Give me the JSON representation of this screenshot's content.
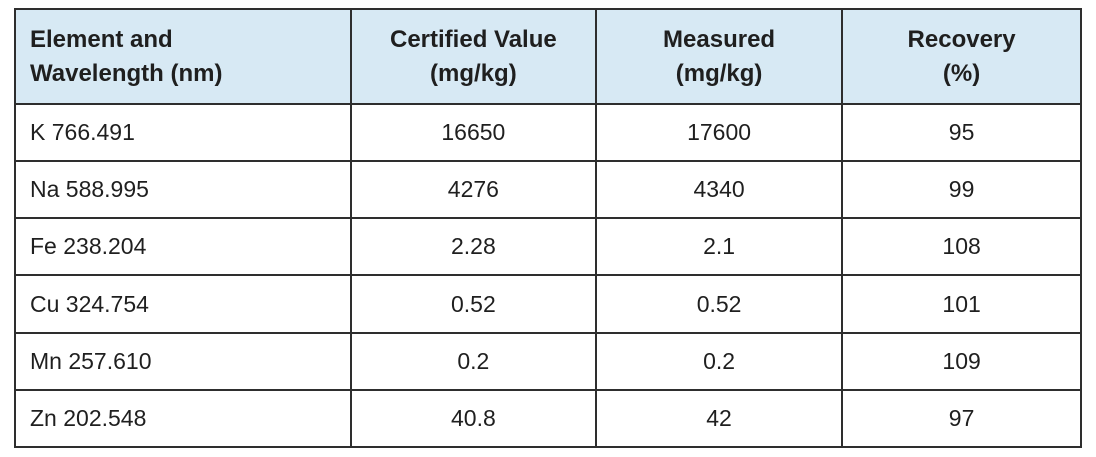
{
  "table": {
    "headers": [
      "Element and\nWavelength (nm)",
      "Certified Value\n(mg/kg)",
      "Measured\n(mg/kg)",
      "Recovery\n(%)"
    ],
    "rows": [
      {
        "element_wavelength": "K 766.491",
        "certified_value": "16650",
        "measured": "17600",
        "recovery": "95"
      },
      {
        "element_wavelength": "Na 588.995",
        "certified_value": "4276",
        "measured": "4340",
        "recovery": "99"
      },
      {
        "element_wavelength": "Fe 238.204",
        "certified_value": "2.28",
        "measured": "2.1",
        "recovery": "108"
      },
      {
        "element_wavelength": "Cu 324.754",
        "certified_value": "0.52",
        "measured": "0.52",
        "recovery": "101"
      },
      {
        "element_wavelength": "Mn 257.610",
        "certified_value": "0.2",
        "measured": "0.2",
        "recovery": "109"
      },
      {
        "element_wavelength": "Zn 202.548",
        "certified_value": "40.8",
        "measured": "42",
        "recovery": "97"
      }
    ],
    "colors": {
      "header_background": "#d7e9f4",
      "border": "#2e2e2e",
      "text": "#1f1f1f",
      "row_background": "#ffffff"
    }
  }
}
